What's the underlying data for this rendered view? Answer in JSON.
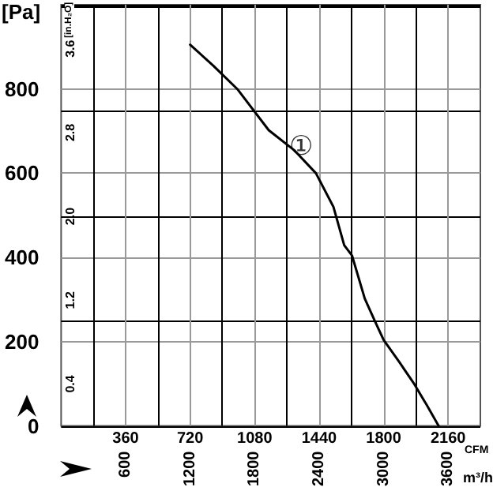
{
  "chart_data": {
    "type": "line",
    "xlabel": "CFM",
    "x2label": "m³/h",
    "ylabel": "[Pa]",
    "y2label": "[in.H₂O]",
    "x": [
      720,
      850,
      983,
      1159,
      1300,
      1422,
      1520,
      1580,
      1624,
      1695,
      1750,
      1800,
      1890,
      1967,
      2040,
      2107
    ],
    "series": [
      {
        "color": "#000000",
        "values": [
          905,
          855,
          800,
          702,
          655,
          600,
          520,
          429,
          404,
          302,
          250,
          204,
          150,
          102,
          50,
          0
        ]
      }
    ],
    "xlim": [
      0,
      2340
    ],
    "xticks": [
      {
        "value": 180,
        "label": null
      },
      360,
      {
        "value": 540,
        "label": null
      },
      720,
      {
        "value": 900,
        "label": null
      },
      1080,
      {
        "value": 1260,
        "label": null
      },
      1440,
      {
        "value": 1620,
        "label": null
      },
      1800,
      {
        "value": 1980,
        "label": null
      },
      2160
    ],
    "x2lim": [
      0,
      3900
    ],
    "x2ticks": [
      600,
      1200,
      1800,
      2400,
      3000,
      3600
    ],
    "ylim": [
      0,
      1000
    ],
    "yticks": [
      0,
      200,
      400,
      600,
      800
    ],
    "y2lim": [
      0,
      4.02
    ],
    "y2ticks": [
      0.4,
      1.2,
      {
        "value": 2,
        "label": "2.0"
      },
      2.8,
      3.6
    ],
    "annotations": [
      {
        "text": "①",
        "x": 1340,
        "y": 665
      }
    ],
    "grid": true,
    "marker": "none",
    "line_style": "solid"
  }
}
